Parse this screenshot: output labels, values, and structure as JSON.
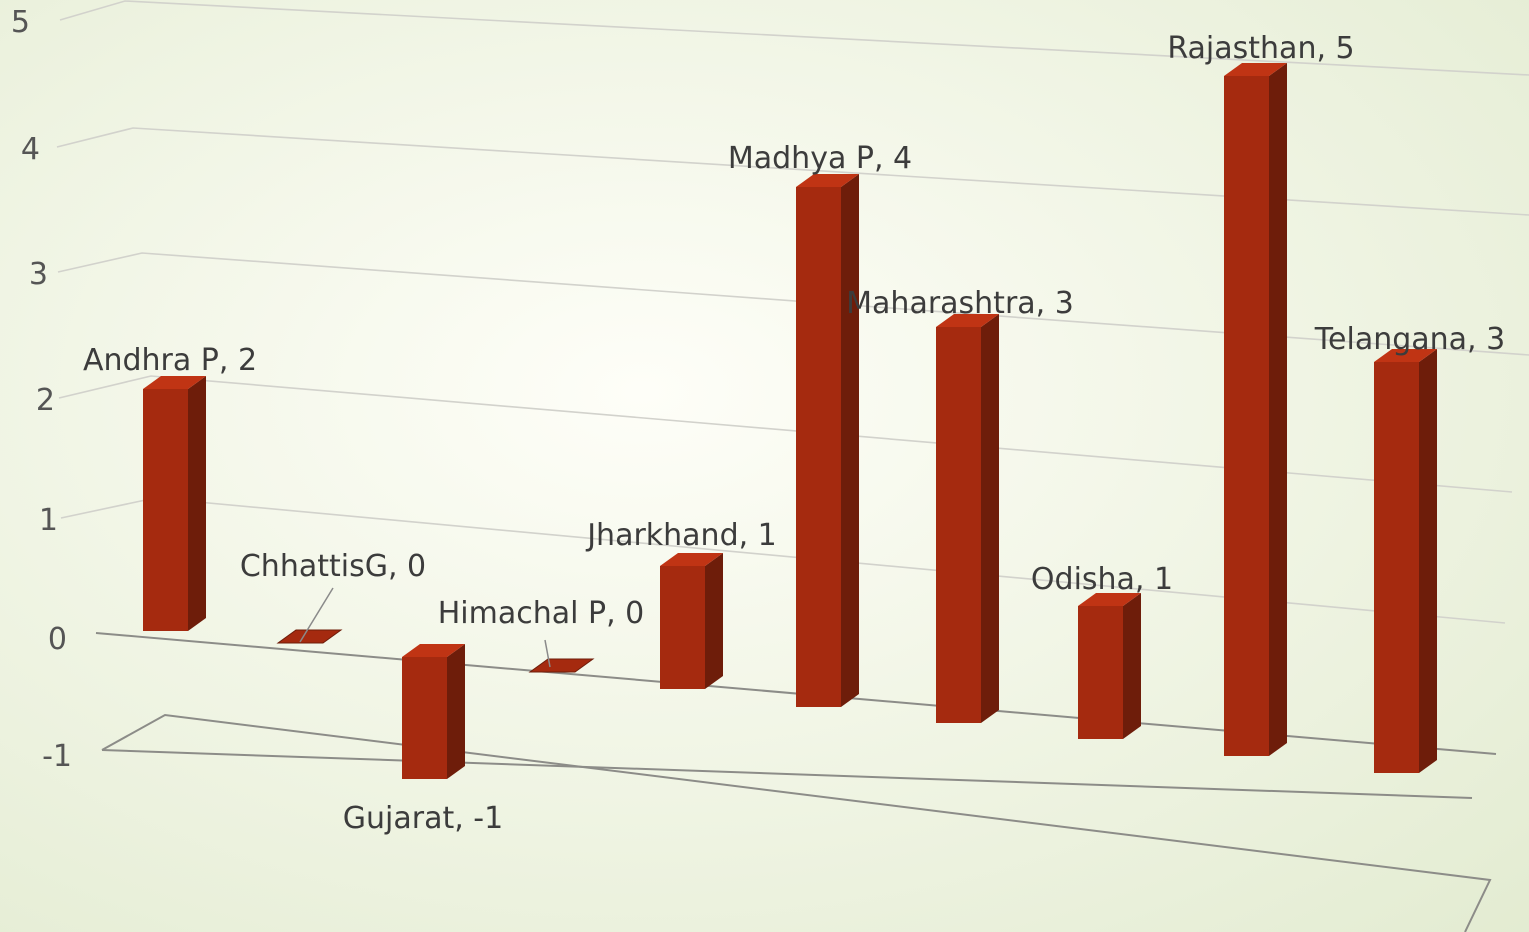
{
  "colors": {
    "background_center": "#fefef8",
    "background_edge": "#e2ebd0",
    "bar_front": "#a52a0f",
    "bar_side": "#6e1d0a",
    "bar_top": "#c03414",
    "grid": "#d2d2cc",
    "axis": "#8c8c88",
    "text": "#3c3c3c"
  },
  "chart_data": {
    "type": "bar",
    "variant": "3d-column",
    "title": "",
    "xlabel": "",
    "ylabel": "",
    "ylim": [
      -1,
      5
    ],
    "yticks": [
      5,
      4,
      3,
      2,
      1,
      0,
      -1
    ],
    "grid": true,
    "legend": "none",
    "categories": [
      "Andhra P",
      "ChhattisG",
      "Gujarat",
      "Himachal P",
      "Jharkhand",
      "Madhya P",
      "Maharashtra",
      "Odisha",
      "Rajasthan",
      "Telangana"
    ],
    "values": [
      2,
      0,
      -1,
      0,
      1,
      4,
      3,
      1,
      5,
      3
    ],
    "data_labels": [
      "Andhra P, 2",
      "ChhattisG, 0",
      "Gujarat, -1",
      "Himachal P, 0",
      "Jharkhand, 1",
      "Madhya P, 4",
      "Maharashtra, 3",
      "Odisha, 1",
      "Rajasthan, 5",
      "Telangana, 3"
    ]
  }
}
